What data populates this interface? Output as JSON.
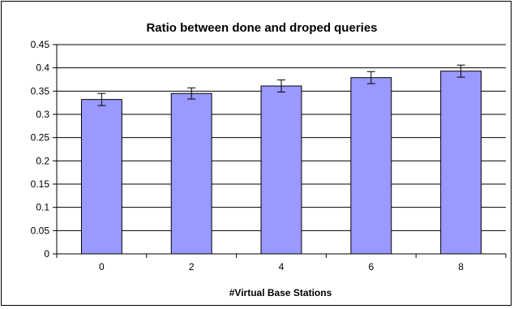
{
  "chart_data": {
    "type": "bar",
    "title": "Ratio between done and droped queries",
    "xlabel": "#Virtual Base Stations",
    "ylabel": "",
    "categories": [
      "0",
      "2",
      "4",
      "6",
      "8"
    ],
    "values": [
      0.332,
      0.345,
      0.361,
      0.379,
      0.393
    ],
    "error": [
      0.013,
      0.012,
      0.013,
      0.013,
      0.013
    ],
    "ylim": [
      0,
      0.45
    ],
    "yticks": [
      "0",
      "0.05",
      "0.1",
      "0.15",
      "0.2",
      "0.25",
      "0.3",
      "0.35",
      "0.4",
      "0.45"
    ],
    "grid": true,
    "legend": "none",
    "bar_color": "#9999ff",
    "bar_edge_color": "#000000",
    "grid_color": "#000000"
  }
}
